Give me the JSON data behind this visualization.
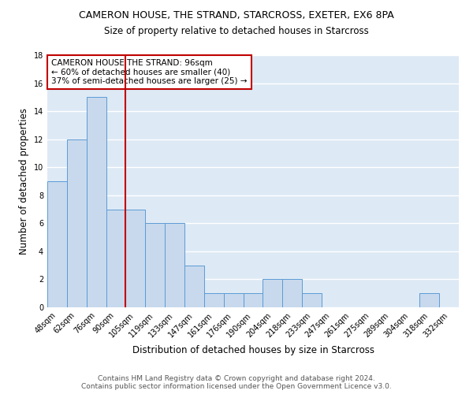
{
  "title": "CAMERON HOUSE, THE STRAND, STARCROSS, EXETER, EX6 8PA",
  "subtitle": "Size of property relative to detached houses in Starcross",
  "xlabel": "Distribution of detached houses by size in Starcross",
  "ylabel": "Number of detached properties",
  "categories": [
    "48sqm",
    "62sqm",
    "76sqm",
    "90sqm",
    "105sqm",
    "119sqm",
    "133sqm",
    "147sqm",
    "161sqm",
    "176sqm",
    "190sqm",
    "204sqm",
    "218sqm",
    "233sqm",
    "247sqm",
    "261sqm",
    "275sqm",
    "289sqm",
    "304sqm",
    "318sqm",
    "332sqm"
  ],
  "values": [
    9,
    12,
    15,
    7,
    7,
    6,
    6,
    3,
    1,
    1,
    1,
    2,
    2,
    1,
    0,
    0,
    0,
    0,
    0,
    1,
    0
  ],
  "bar_color": "#c8d9ed",
  "bar_edge_color": "#5b9bd5",
  "vline_x": 3.5,
  "vline_color": "#c00000",
  "annotation_text": "CAMERON HOUSE THE STRAND: 96sqm\n← 60% of detached houses are smaller (40)\n37% of semi-detached houses are larger (25) →",
  "annotation_box_color": "white",
  "annotation_box_edge_color": "#c00000",
  "ylim": [
    0,
    18
  ],
  "yticks": [
    0,
    2,
    4,
    6,
    8,
    10,
    12,
    14,
    16,
    18
  ],
  "footer_text": "Contains HM Land Registry data © Crown copyright and database right 2024.\nContains public sector information licensed under the Open Government Licence v3.0.",
  "bg_color": "#dde9f5",
  "grid_color": "white",
  "title_fontsize": 9,
  "subtitle_fontsize": 8.5,
  "ylabel_fontsize": 8.5,
  "xlabel_fontsize": 8.5,
  "tick_fontsize": 7,
  "annotation_fontsize": 7.5,
  "footer_fontsize": 6.5
}
